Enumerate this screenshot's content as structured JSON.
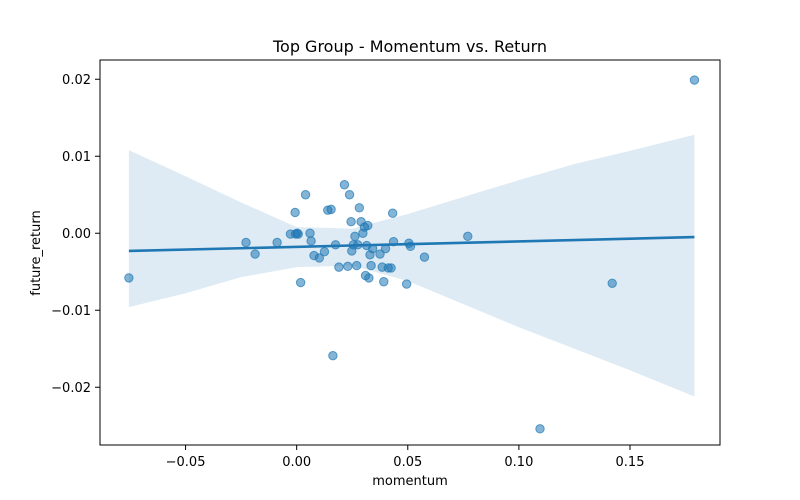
{
  "chart_data": {
    "type": "scatter",
    "title": "Top Group - Momentum vs. Return",
    "xlabel": "momentum",
    "ylabel": "future_return",
    "xlim": [
      -0.0885,
      0.1905
    ],
    "ylim": [
      -0.0275,
      0.0225
    ],
    "xticks": [
      -0.05,
      0.0,
      0.05,
      0.1,
      0.15
    ],
    "xtick_labels": [
      "−0.05",
      "0.00",
      "0.05",
      "0.10",
      "0.15"
    ],
    "yticks": [
      -0.02,
      -0.01,
      0.0,
      0.01,
      0.02
    ],
    "ytick_labels": [
      "−0.02",
      "−0.01",
      "0.00",
      "0.01",
      "0.02"
    ],
    "grid": false,
    "colors": {
      "points": "#1f77b4",
      "line": "#1f77b4",
      "band": "#1f77b4"
    },
    "points": [
      {
        "x": -0.0755,
        "y": -0.0058
      },
      {
        "x": -0.0228,
        "y": -0.0012
      },
      {
        "x": -0.0187,
        "y": -0.0027
      },
      {
        "x": -0.0088,
        "y": -0.0012
      },
      {
        "x": -0.0028,
        "y": -0.0001
      },
      {
        "x": -0.0007,
        "y": 0.0027
      },
      {
        "x": -0.0005,
        "y": -0.0001
      },
      {
        "x": 0.0002,
        "y": 0.0
      },
      {
        "x": 0.0007,
        "y": -0.0001
      },
      {
        "x": 0.0018,
        "y": -0.0064
      },
      {
        "x": 0.004,
        "y": 0.005
      },
      {
        "x": 0.006,
        "y": 0.0
      },
      {
        "x": 0.0065,
        "y": -0.001
      },
      {
        "x": 0.0078,
        "y": -0.0029
      },
      {
        "x": 0.0102,
        "y": -0.0032
      },
      {
        "x": 0.0125,
        "y": -0.0024
      },
      {
        "x": 0.014,
        "y": 0.003
      },
      {
        "x": 0.0155,
        "y": 0.0031
      },
      {
        "x": 0.0163,
        "y": -0.0159
      },
      {
        "x": 0.0175,
        "y": -0.0015
      },
      {
        "x": 0.019,
        "y": -0.0044
      },
      {
        "x": 0.0215,
        "y": 0.0063
      },
      {
        "x": 0.023,
        "y": -0.0043
      },
      {
        "x": 0.0238,
        "y": 0.005
      },
      {
        "x": 0.0245,
        "y": 0.0015
      },
      {
        "x": 0.0248,
        "y": -0.0023
      },
      {
        "x": 0.0255,
        "y": -0.0015
      },
      {
        "x": 0.0262,
        "y": -0.0004
      },
      {
        "x": 0.027,
        "y": -0.0042
      },
      {
        "x": 0.0275,
        "y": -0.0015
      },
      {
        "x": 0.0282,
        "y": 0.0033
      },
      {
        "x": 0.029,
        "y": 0.0015
      },
      {
        "x": 0.0298,
        "y": 0.0
      },
      {
        "x": 0.0305,
        "y": 0.0008
      },
      {
        "x": 0.031,
        "y": -0.0055
      },
      {
        "x": 0.0315,
        "y": -0.0016
      },
      {
        "x": 0.032,
        "y": 0.001
      },
      {
        "x": 0.0325,
        "y": -0.0058
      },
      {
        "x": 0.033,
        "y": -0.0028
      },
      {
        "x": 0.0335,
        "y": -0.0042
      },
      {
        "x": 0.0342,
        "y": -0.002
      },
      {
        "x": 0.0375,
        "y": -0.0027
      },
      {
        "x": 0.0385,
        "y": -0.0044
      },
      {
        "x": 0.0392,
        "y": -0.0063
      },
      {
        "x": 0.04,
        "y": -0.002
      },
      {
        "x": 0.0412,
        "y": -0.0045
      },
      {
        "x": 0.0425,
        "y": -0.0045
      },
      {
        "x": 0.0432,
        "y": 0.0026
      },
      {
        "x": 0.0436,
        "y": -0.0011
      },
      {
        "x": 0.0495,
        "y": -0.0066
      },
      {
        "x": 0.0505,
        "y": -0.0013
      },
      {
        "x": 0.0512,
        "y": -0.0017
      },
      {
        "x": 0.0575,
        "y": -0.0031
      },
      {
        "x": 0.077,
        "y": -0.0004
      },
      {
        "x": 0.1095,
        "y": -0.0254
      },
      {
        "x": 0.142,
        "y": -0.0065
      },
      {
        "x": 0.179,
        "y": 0.0199
      }
    ],
    "regression": {
      "x": [
        -0.0755,
        0.179
      ],
      "y": [
        -0.0023,
        -0.0005
      ]
    },
    "confidence_band": {
      "x": [
        -0.0755,
        -0.05,
        -0.025,
        0.0,
        0.025,
        0.05,
        0.075,
        0.1,
        0.125,
        0.15,
        0.179
      ],
      "upper": [
        0.0108,
        0.0074,
        0.004,
        0.0008,
        0.0006,
        0.0025,
        0.0047,
        0.0069,
        0.009,
        0.0107,
        0.0128
      ],
      "lower": [
        -0.0096,
        -0.0078,
        -0.0057,
        -0.0044,
        -0.0042,
        -0.0062,
        -0.0092,
        -0.0122,
        -0.015,
        -0.0178,
        -0.0212
      ]
    }
  }
}
